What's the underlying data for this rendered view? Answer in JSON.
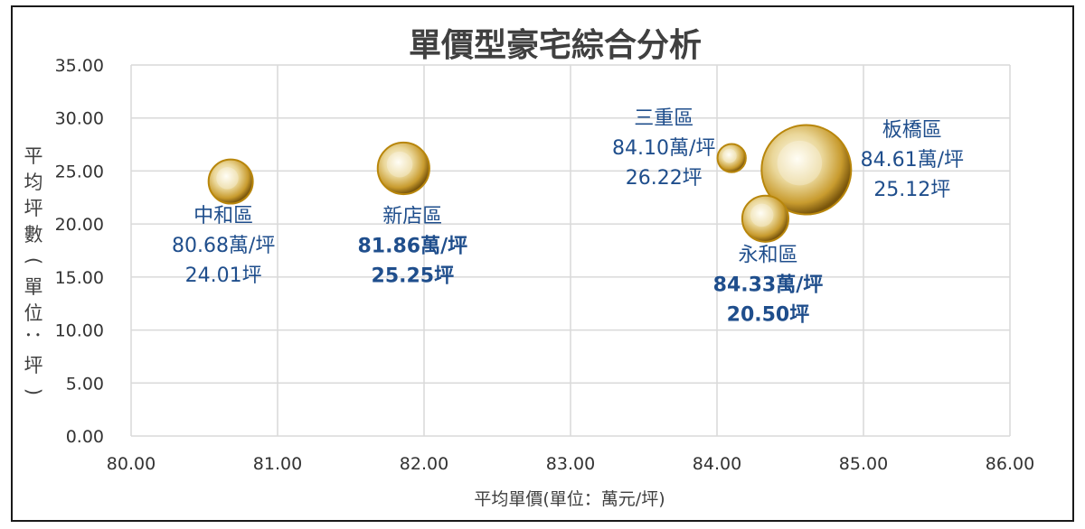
{
  "chart_data": {
    "type": "bubble",
    "title": "單價型豪宅綜合分析",
    "xlabel": "平均單價(單位：萬元/坪)",
    "ylabel": "平均坪數(單位：坪)",
    "xlim": [
      80,
      86
    ],
    "ylim": [
      0,
      35
    ],
    "x_ticks": [
      "80.00",
      "81.00",
      "82.00",
      "83.00",
      "84.00",
      "85.00",
      "86.00"
    ],
    "y_ticks": [
      "0.00",
      "5.00",
      "10.00",
      "15.00",
      "20.00",
      "25.00",
      "30.00",
      "35.00"
    ],
    "grid": true,
    "points": [
      {
        "name": "中和區",
        "x": 80.68,
        "y": 24.01,
        "size": 2.2,
        "price_label": "80.68萬/坪",
        "area_label": "24.01坪",
        "bold": false
      },
      {
        "name": "新店區",
        "x": 81.86,
        "y": 25.25,
        "size": 3.0,
        "price_label": "81.86萬/坪",
        "area_label": "25.25坪",
        "bold": true
      },
      {
        "name": "三重區",
        "x": 84.1,
        "y": 26.22,
        "size": 0.9,
        "price_label": "84.10萬/坪",
        "area_label": "26.22坪",
        "bold": false
      },
      {
        "name": "永和區",
        "x": 84.33,
        "y": 20.5,
        "size": 2.4,
        "price_label": "84.33萬/坪",
        "area_label": "20.50坪",
        "bold": true
      },
      {
        "name": "板橋區",
        "x": 84.61,
        "y": 25.12,
        "size": 9.0,
        "price_label": "84.61萬/坪",
        "area_label": "25.12坪",
        "bold": false
      }
    ],
    "colors": {
      "label": "#1f4e8c",
      "grid": "#d9d9d9",
      "bubble_light": "#fffbe6",
      "bubble_mid": "#e6c56b",
      "bubble_dark": "#8a6510",
      "title": "#404040",
      "axis_text": "#333333"
    }
  }
}
